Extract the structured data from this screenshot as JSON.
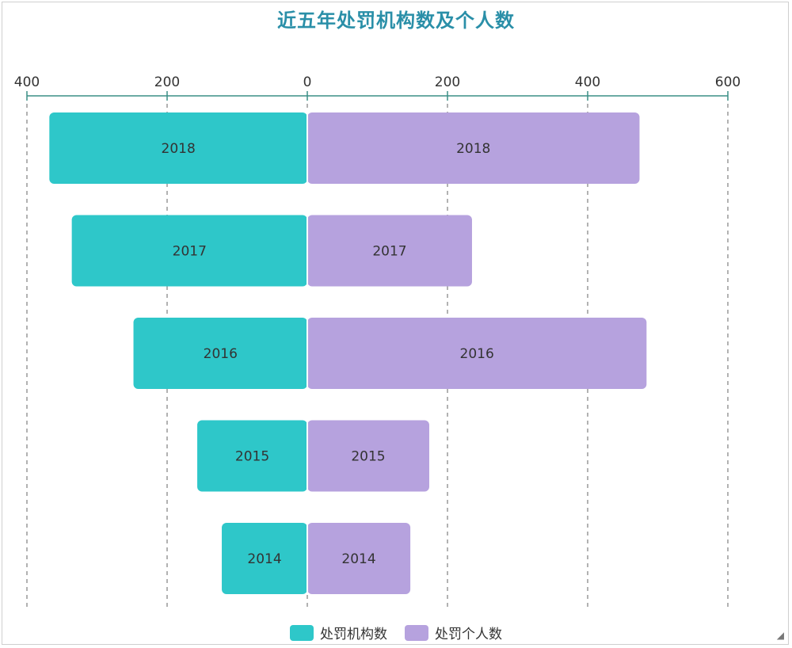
{
  "chart_data": {
    "type": "bar",
    "orientation": "horizontal-diverging",
    "title": "近五年处罚机构数及个人数",
    "categories": [
      "2018",
      "2017",
      "2016",
      "2015",
      "2014"
    ],
    "series": [
      {
        "name": "处罚机构数",
        "values": [
          368,
          336,
          248,
          157,
          122
        ],
        "color": "#2ec7c9",
        "side": "left"
      },
      {
        "name": "处罚个人数",
        "values": [
          474,
          235,
          484,
          174,
          147
        ],
        "color": "#b6a2de",
        "side": "right"
      }
    ],
    "axis": {
      "left_ticks": [
        400,
        200,
        0
      ],
      "right_ticks": [
        200,
        400,
        600
      ],
      "tick_labels": [
        "400",
        "200",
        "0",
        "200",
        "400",
        "600"
      ],
      "left_max": 400,
      "right_max": 600,
      "axis_color": "#3b8f86"
    },
    "grid": true,
    "legend_position": "bottom-center"
  }
}
